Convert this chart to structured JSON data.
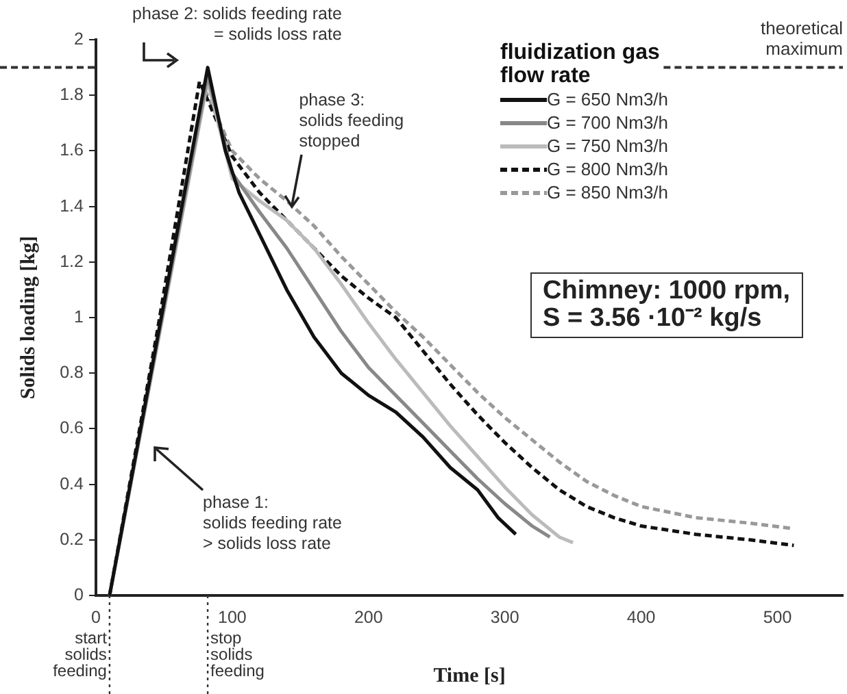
{
  "chart_data": {
    "type": "line",
    "xlabel": "Time [s]",
    "ylabel": "Solids loading [kg]",
    "legend_title": "fluidization gas flow rate",
    "legend": "top right",
    "grid": false,
    "marker": "none",
    "xlim": [
      0,
      548
    ],
    "xticks": [
      0,
      100,
      200,
      300,
      400,
      500
    ],
    "ylim": [
      0,
      2
    ],
    "yticks": [
      0,
      0.2,
      0.4,
      0.6,
      0.8,
      1,
      1.2,
      1.4,
      1.6,
      1.8,
      2
    ],
    "series": [
      {
        "name": "G = 650 Nm3/h",
        "color": "#111111",
        "line_style": "solid",
        "x": [
          10,
          82,
          95,
          105,
          120,
          140,
          160,
          180,
          200,
          220,
          240,
          260,
          280,
          295,
          308
        ],
        "values": [
          0,
          1.9,
          1.6,
          1.45,
          1.3,
          1.1,
          0.93,
          0.8,
          0.72,
          0.66,
          0.57,
          0.46,
          0.38,
          0.28,
          0.22
        ]
      },
      {
        "name": "G = 700 Nm3/h",
        "color": "#888888",
        "line_style": "solid",
        "x": [
          10,
          82,
          100,
          120,
          140,
          160,
          180,
          200,
          220,
          240,
          260,
          280,
          300,
          320,
          333
        ],
        "values": [
          0,
          1.87,
          1.52,
          1.38,
          1.25,
          1.1,
          0.95,
          0.82,
          0.72,
          0.62,
          0.52,
          0.42,
          0.33,
          0.25,
          0.21
        ]
      },
      {
        "name": "G = 750 Nm3/h",
        "color": "#bbbbbb",
        "line_style": "solid",
        "x": [
          10,
          82,
          100,
          120,
          140,
          160,
          180,
          200,
          220,
          240,
          260,
          280,
          300,
          320,
          340,
          350
        ],
        "values": [
          0,
          1.85,
          1.5,
          1.42,
          1.35,
          1.25,
          1.12,
          0.98,
          0.85,
          0.73,
          0.61,
          0.5,
          0.39,
          0.29,
          0.21,
          0.19
        ]
      },
      {
        "name": "G = 800 Nm3/h",
        "color": "#111111",
        "line_style": "dashed",
        "x": [
          10,
          45,
          76,
          100,
          120,
          140,
          160,
          180,
          200,
          220,
          240,
          260,
          280,
          300,
          320,
          340,
          360,
          380,
          400,
          440,
          480,
          512
        ],
        "values": [
          0,
          0.95,
          1.85,
          1.58,
          1.45,
          1.35,
          1.25,
          1.15,
          1.07,
          1,
          0.88,
          0.76,
          0.65,
          0.55,
          0.46,
          0.38,
          0.32,
          0.28,
          0.25,
          0.22,
          0.2,
          0.18
        ]
      },
      {
        "name": "G = 850 Nm3/h",
        "color": "#999999",
        "line_style": "dashed",
        "x": [
          10,
          80,
          100,
          120,
          140,
          160,
          180,
          200,
          220,
          240,
          260,
          280,
          300,
          320,
          340,
          360,
          380,
          400,
          440,
          480,
          512
        ],
        "values": [
          0,
          1.82,
          1.6,
          1.5,
          1.42,
          1.33,
          1.22,
          1.12,
          1.02,
          0.93,
          0.83,
          0.73,
          0.64,
          0.56,
          0.48,
          0.41,
          0.36,
          0.32,
          0.28,
          0.26,
          0.24
        ]
      }
    ],
    "ref_lines": [
      {
        "axis": "y",
        "value": 1.9,
        "label": "theoretical maximum",
        "line_style": "dashed",
        "color": "#333333"
      },
      {
        "axis": "x",
        "value": 10,
        "label": "start solids feeding",
        "line_style": "dotted",
        "color": "#333333"
      },
      {
        "axis": "x",
        "value": 82,
        "label": "stop solids feeding",
        "line_style": "dotted",
        "color": "#333333"
      }
    ],
    "annotations": [
      {
        "text": "phase 2: solids feeding rate\n= solids loss rate",
        "x": 82,
        "y": 1.9
      },
      {
        "text": "phase 3:\nsolids feeding\nstopped",
        "x": 146,
        "y": 1.41
      },
      "phase 1:\nsolids feeding rate\n> solids loss rate",
      "Chimney: 1000 rpm,\nS = 3.56 ·10⁻² kg/s"
    ]
  }
}
